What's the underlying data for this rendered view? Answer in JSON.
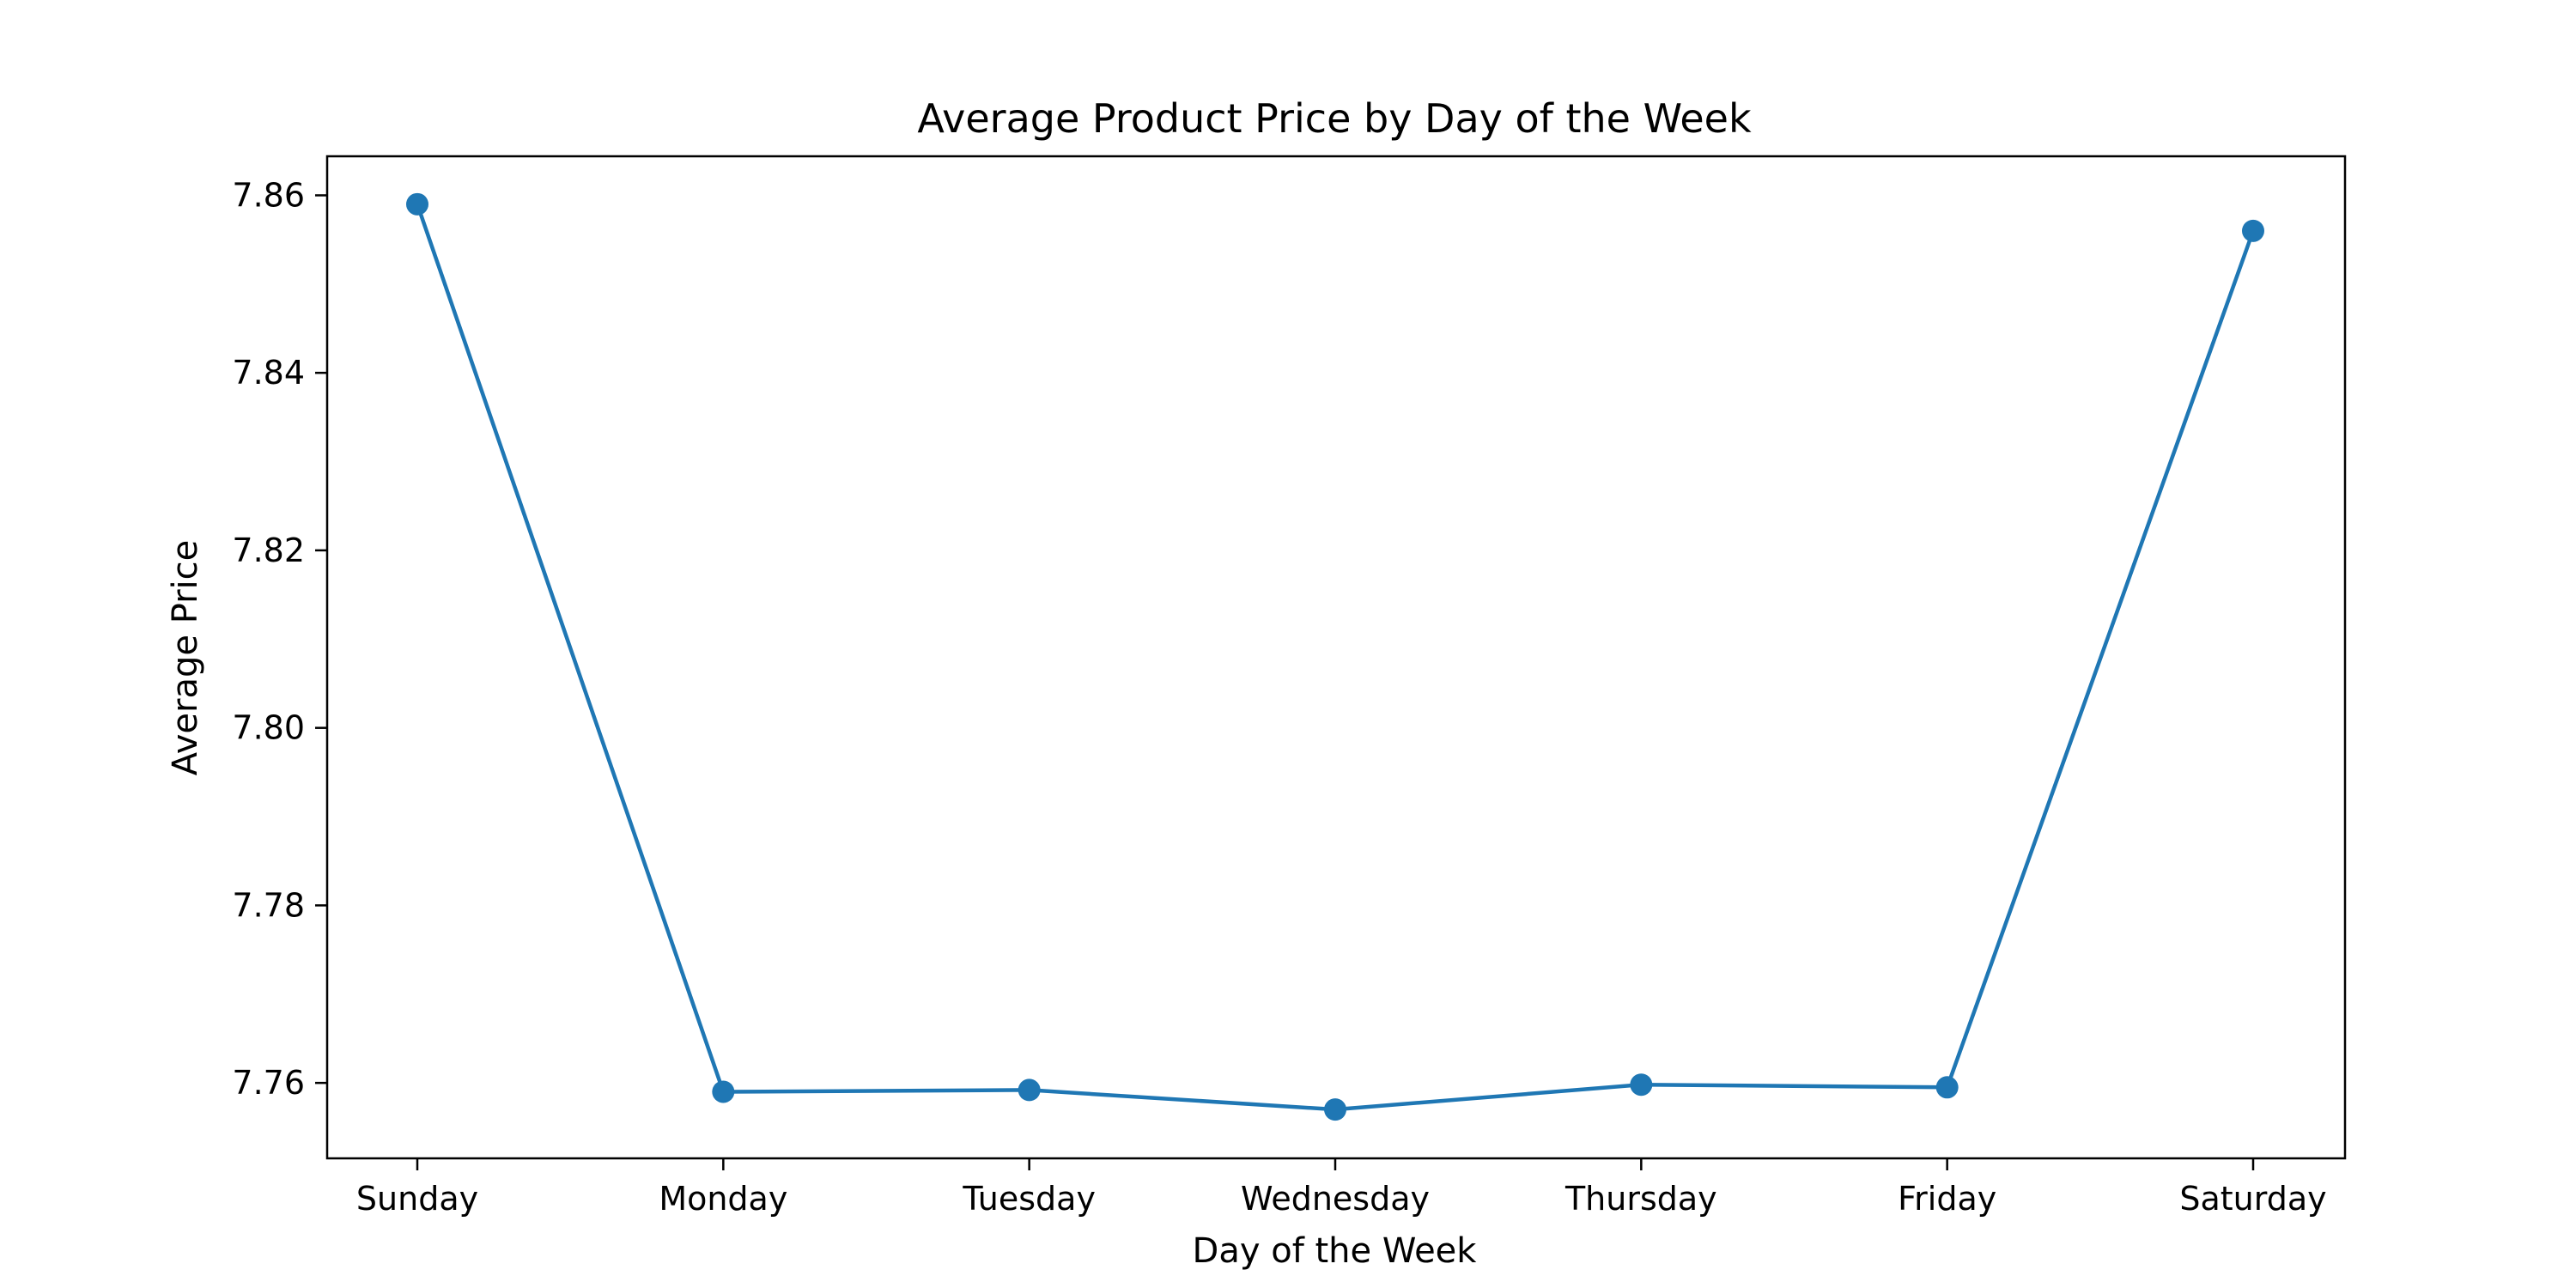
{
  "chart_data": {
    "type": "line",
    "title": "Average Product Price by Day of the Week",
    "xlabel": "Day of the Week",
    "ylabel": "Average Price",
    "categories": [
      "Sunday",
      "Monday",
      "Tuesday",
      "Wednesday",
      "Thursday",
      "Friday",
      "Saturday"
    ],
    "values": [
      7.859,
      7.759,
      7.7592,
      7.757,
      7.7598,
      7.7595,
      7.856
    ],
    "ylim": [
      7.7515,
      7.8644
    ],
    "yticks": [
      7.76,
      7.78,
      7.8,
      7.82,
      7.84,
      7.86
    ],
    "ytick_labels": [
      "7.76",
      "7.78",
      "7.80",
      "7.82",
      "7.84",
      "7.86"
    ],
    "grid": false,
    "color": "#1f77b4"
  }
}
